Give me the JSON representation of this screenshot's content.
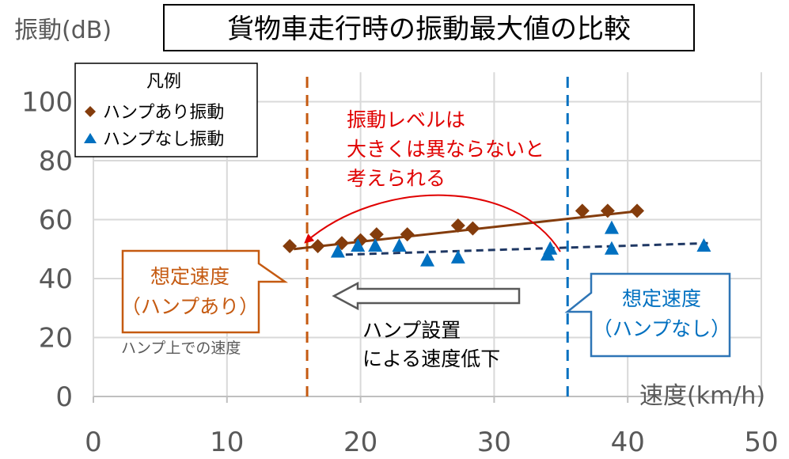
{
  "chart_data": {
    "type": "scatter",
    "title": "貨物車走行時の振動最大値の比較",
    "xlabel": "速度(km/h)",
    "ylabel": "振動(dB)",
    "xlim": [
      0,
      50
    ],
    "ylim": [
      0,
      110
    ],
    "x_ticks": [
      "0",
      "10",
      "20",
      "30",
      "40",
      "50"
    ],
    "y_ticks": [
      "0",
      "20",
      "40",
      "60",
      "80",
      "100"
    ],
    "grid": true,
    "legend": {
      "title": "凡例",
      "position": "top-left",
      "entries": [
        "ハンプあり振動",
        "ハンプなし振動"
      ]
    },
    "series": [
      {
        "name": "ハンプあり振動",
        "marker": "diamond",
        "color": "#843C0C",
        "trendline": {
          "x": [
            15,
            41
          ],
          "y": [
            50.0,
            63.0
          ],
          "style": "solid"
        },
        "points": [
          [
            14.7,
            51
          ],
          [
            16.8,
            51
          ],
          [
            18.6,
            52
          ],
          [
            20.0,
            53
          ],
          [
            21.2,
            55
          ],
          [
            23.5,
            55
          ],
          [
            27.3,
            58
          ],
          [
            28.4,
            57
          ],
          [
            36.6,
            63
          ],
          [
            38.5,
            63
          ],
          [
            40.7,
            63
          ]
        ]
      },
      {
        "name": "ハンプなし振動",
        "marker": "triangle",
        "color": "#0070C0",
        "trendline": {
          "x": [
            18,
            46
          ],
          "y": [
            48.0,
            52.0
          ],
          "style": "dashed",
          "color": "#1F3864"
        },
        "points": [
          [
            18.3,
            49
          ],
          [
            19.8,
            51
          ],
          [
            21.1,
            51
          ],
          [
            22.9,
            51
          ],
          [
            25.0,
            46
          ],
          [
            27.3,
            47
          ],
          [
            34.0,
            48
          ],
          [
            34.2,
            50
          ],
          [
            38.8,
            57
          ],
          [
            38.8,
            50
          ],
          [
            45.7,
            51
          ]
        ]
      }
    ],
    "vertical_lines": [
      {
        "x": 16,
        "color": "#C55A11",
        "label": "想定速度（ハンプあり）"
      },
      {
        "x": 35.5,
        "color": "#0070C0",
        "label": "想定速度（ハンプなし）"
      }
    ],
    "annotations": {
      "red_note": [
        "振動レベルは",
        "大きくは異ならないと",
        "考えられる"
      ],
      "callout_left": [
        "想定速度",
        "（ハンプあり）"
      ],
      "callout_left_note": "ハンプ上での速度",
      "callout_right": [
        "想定速度",
        "（ハンプなし）"
      ],
      "arrow_note": [
        "ハンプ設置",
        "による速度低下"
      ]
    }
  }
}
